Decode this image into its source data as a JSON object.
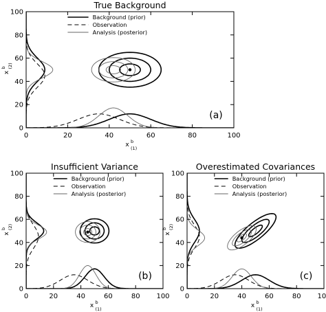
{
  "chart_data": [
    {
      "type": "line",
      "panel": "a",
      "title": "True Background",
      "panel_label": "(a)",
      "xlabel": "x",
      "xlabel_sup": "b",
      "xlabel_sub": "(1)",
      "ylabel": "x",
      "ylabel_sup": "b",
      "ylabel_sub": "(2)",
      "xlim": [
        0,
        100
      ],
      "ylim": [
        0,
        100
      ],
      "xticks": [
        0,
        20,
        40,
        60,
        80,
        100
      ],
      "yticks": [
        0,
        20,
        40,
        60,
        80,
        100
      ],
      "grid": false,
      "legend_position": "top",
      "legend": [
        {
          "label": "Background (prior)",
          "style": "solid-thick"
        },
        {
          "label": "Observation",
          "style": "dashed"
        },
        {
          "label": "Analysis (posterior)",
          "style": "solid-thin"
        }
      ],
      "series": [
        {
          "label": "Background (prior)",
          "mean": [
            50,
            50
          ],
          "sd": [
            10,
            10
          ],
          "corr": 0
        },
        {
          "label": "Observation",
          "mean": [
            35,
            45
          ],
          "sd": [
            10,
            10
          ],
          "corr": 0
        },
        {
          "label": "Analysis (posterior)",
          "mean": [
            42,
            50
          ],
          "sd": [
            7,
            7
          ],
          "corr": 0
        }
      ],
      "marker": [
        50,
        50
      ]
    },
    {
      "type": "line",
      "panel": "b",
      "title": "Insufficient Variance",
      "panel_label": "(b)",
      "xlabel": "x",
      "xlabel_sup": "b",
      "xlabel_sub": "(1)",
      "ylabel": "x",
      "ylabel_sup": "b",
      "ylabel_sub": "(2)",
      "xlim": [
        0,
        100
      ],
      "ylim": [
        0,
        100
      ],
      "xticks": [
        0,
        20,
        40,
        60,
        80,
        100
      ],
      "yticks": [
        0,
        20,
        40,
        60,
        80,
        100
      ],
      "grid": false,
      "legend_position": "top",
      "legend": [
        {
          "label": "Background (prior)",
          "style": "solid-thick"
        },
        {
          "label": "Observation",
          "style": "dashed"
        },
        {
          "label": "Analysis (posterior)",
          "style": "solid-thin"
        }
      ],
      "series": [
        {
          "label": "Background (prior)",
          "mean": [
            50,
            50
          ],
          "sd": [
            7,
            7
          ],
          "corr": 0
        },
        {
          "label": "Observation",
          "mean": [
            35,
            45
          ],
          "sd": [
            10,
            10
          ],
          "corr": 0
        },
        {
          "label": "Analysis (posterior)",
          "mean": [
            45,
            49
          ],
          "sd": [
            6,
            6
          ],
          "corr": 0
        }
      ],
      "marker": [
        45,
        49
      ]
    },
    {
      "type": "line",
      "panel": "c",
      "title": "Overestimated Covariances",
      "panel_label": "(c)",
      "xlabel": "x",
      "xlabel_sup": "b",
      "xlabel_sub": "(1)",
      "ylabel": "x",
      "ylabel_sup": "b",
      "ylabel_sub": "(2)",
      "xlim": [
        0,
        100
      ],
      "ylim": [
        0,
        100
      ],
      "xticks": [
        0,
        20,
        40,
        60,
        80,
        100
      ],
      "yticks": [
        0,
        20,
        40,
        60,
        80,
        100
      ],
      "grid": false,
      "legend_position": "top",
      "legend": [
        {
          "label": "Background (prior)",
          "style": "solid-thick"
        },
        {
          "label": "Observation",
          "style": "dashed"
        },
        {
          "label": "Analysis (posterior)",
          "style": "solid-thin"
        }
      ],
      "series": [
        {
          "label": "Background (prior)",
          "mean": [
            50,
            50
          ],
          "sd": [
            10,
            10
          ],
          "corr": 0.8
        },
        {
          "label": "Observation",
          "mean": [
            35,
            45
          ],
          "sd": [
            10,
            10
          ],
          "corr": 0
        },
        {
          "label": "Analysis (posterior)",
          "mean": [
            40,
            44
          ],
          "sd": [
            7,
            7
          ],
          "corr": 0.7
        }
      ],
      "marker": [
        40,
        44
      ]
    }
  ]
}
